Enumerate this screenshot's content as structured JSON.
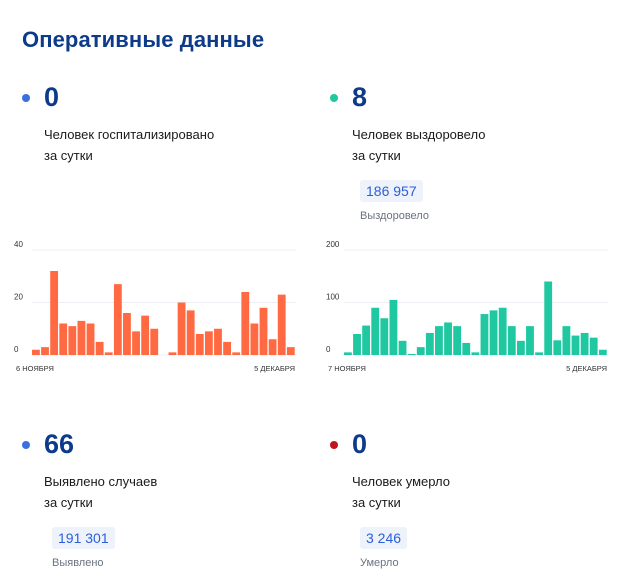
{
  "title": "Оперативные данные",
  "stats": {
    "hospitalized": {
      "value": "0",
      "label_line1": "Человек госпитализировано",
      "label_line2": "за сутки",
      "dot_color": "#3b6ee0"
    },
    "recovered": {
      "value": "8",
      "label_line1": "Человек выздоровело",
      "label_line2": "за сутки",
      "total": "186 957",
      "total_label": "Выздоровело",
      "dot_color": "#1fc8a0"
    },
    "cases": {
      "value": "66",
      "label_line1": "Выявлено случаев",
      "label_line2": "за сутки",
      "total": "191 301",
      "total_label": "Выявлено",
      "dot_color": "#3b6ee0"
    },
    "deaths": {
      "value": "0",
      "label_line1": "Человек умерло",
      "label_line2": "за сутки",
      "total": "3 246",
      "total_label": "Умерло",
      "dot_color": "#c0141e"
    }
  },
  "chart_data": [
    {
      "type": "bar",
      "color": "#ff6a42",
      "y_ticks": [
        "40",
        "20",
        "0"
      ],
      "ylim": [
        0,
        40
      ],
      "x_start_label": "6 НОЯБРЯ",
      "x_end_label": "5 ДЕКАБРЯ",
      "values": [
        2,
        3,
        32,
        12,
        11,
        13,
        12,
        5,
        1,
        27,
        16,
        9,
        15,
        10,
        0,
        1,
        20,
        17,
        8,
        9,
        10,
        5,
        1,
        24,
        12,
        18,
        6,
        23,
        3
      ]
    },
    {
      "type": "bar",
      "color": "#1fc8a0",
      "y_ticks": [
        "200",
        "100",
        "0"
      ],
      "ylim": [
        0,
        200
      ],
      "x_start_label": "7 НОЯБРЯ",
      "x_end_label": "5 ДЕКАБРЯ",
      "values": [
        5,
        40,
        56,
        90,
        70,
        105,
        27,
        2,
        15,
        42,
        55,
        62,
        55,
        23,
        5,
        78,
        85,
        90,
        55,
        27,
        55,
        5,
        140,
        28,
        55,
        37,
        42,
        33,
        10
      ]
    }
  ]
}
